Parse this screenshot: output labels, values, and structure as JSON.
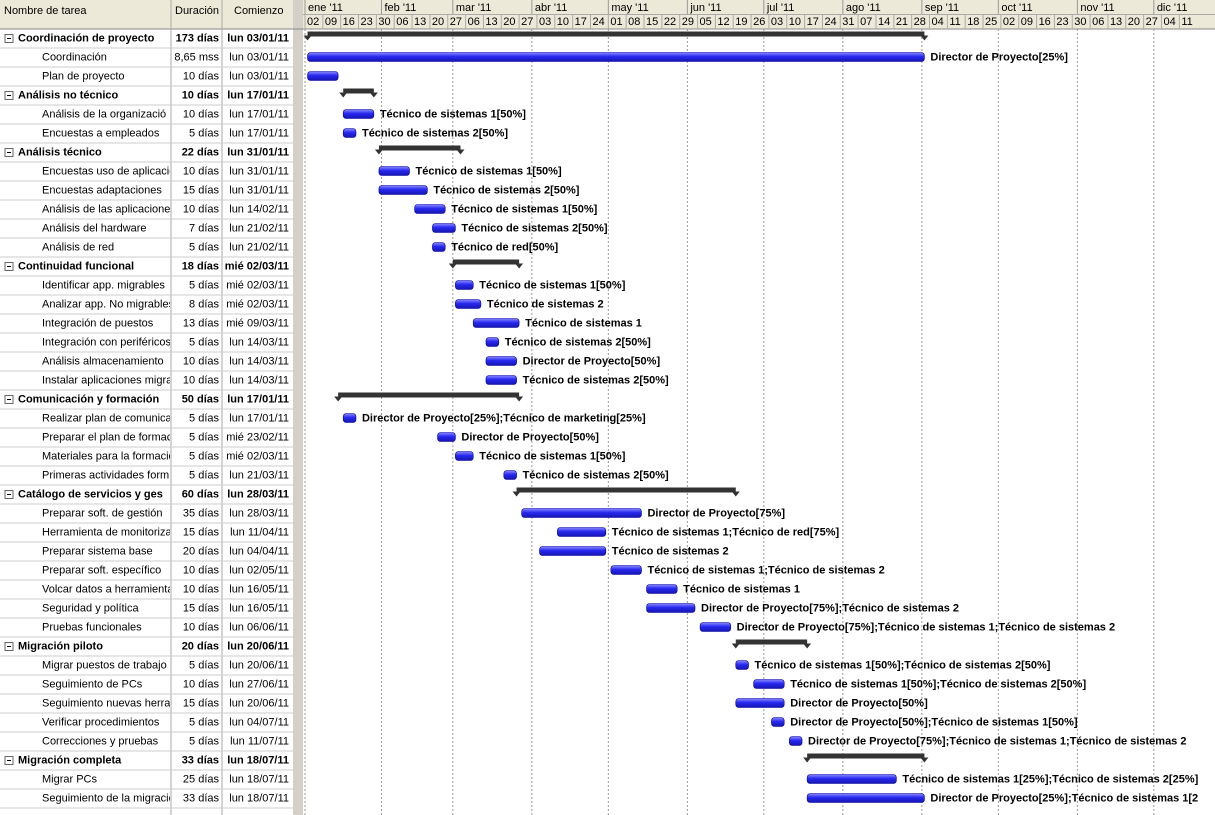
{
  "columns": [
    "Nombre de tarea",
    "Duración",
    "Comienzo"
  ],
  "timeline": {
    "xlim": [
      0,
      357
    ],
    "months": [
      {
        "value": 0,
        "label": "ene '11"
      },
      {
        "value": 30,
        "label": "feb '11"
      },
      {
        "value": 58,
        "label": "mar '11"
      },
      {
        "value": 89,
        "label": "abr '11"
      },
      {
        "value": 119,
        "label": "may '11"
      },
      {
        "value": 150,
        "label": "jun '11"
      },
      {
        "value": 180,
        "label": "jul '11"
      },
      {
        "value": 211,
        "label": "ago '11"
      },
      {
        "value": 242,
        "label": "sep '11"
      },
      {
        "value": 272,
        "label": "oct '11"
      },
      {
        "value": 303,
        "label": "nov '11"
      },
      {
        "value": 333,
        "label": "dic '11"
      }
    ],
    "weeks": [
      {
        "value": 0,
        "label": "02"
      },
      {
        "value": 7,
        "label": "09"
      },
      {
        "value": 14,
        "label": "16"
      },
      {
        "value": 21,
        "label": "23"
      },
      {
        "value": 28,
        "label": "30"
      },
      {
        "value": 35,
        "label": "06"
      },
      {
        "value": 42,
        "label": "13"
      },
      {
        "value": 49,
        "label": "20"
      },
      {
        "value": 56,
        "label": "27"
      },
      {
        "value": 63,
        "label": "06"
      },
      {
        "value": 70,
        "label": "13"
      },
      {
        "value": 77,
        "label": "20"
      },
      {
        "value": 84,
        "label": "27"
      },
      {
        "value": 91,
        "label": "03"
      },
      {
        "value": 98,
        "label": "10"
      },
      {
        "value": 105,
        "label": "17"
      },
      {
        "value": 112,
        "label": "24"
      },
      {
        "value": 119,
        "label": "01"
      },
      {
        "value": 126,
        "label": "08"
      },
      {
        "value": 133,
        "label": "15"
      },
      {
        "value": 140,
        "label": "22"
      },
      {
        "value": 147,
        "label": "29"
      },
      {
        "value": 154,
        "label": "05"
      },
      {
        "value": 161,
        "label": "12"
      },
      {
        "value": 168,
        "label": "19"
      },
      {
        "value": 175,
        "label": "26"
      },
      {
        "value": 182,
        "label": "03"
      },
      {
        "value": 189,
        "label": "10"
      },
      {
        "value": 196,
        "label": "17"
      },
      {
        "value": 203,
        "label": "24"
      },
      {
        "value": 210,
        "label": "31"
      },
      {
        "value": 217,
        "label": "07"
      },
      {
        "value": 224,
        "label": "14"
      },
      {
        "value": 231,
        "label": "21"
      },
      {
        "value": 238,
        "label": "28"
      },
      {
        "value": 245,
        "label": "04"
      },
      {
        "value": 252,
        "label": "11"
      },
      {
        "value": 259,
        "label": "18"
      },
      {
        "value": 266,
        "label": "25"
      },
      {
        "value": 273,
        "label": "02"
      },
      {
        "value": 280,
        "label": "09"
      },
      {
        "value": 287,
        "label": "16"
      },
      {
        "value": 294,
        "label": "23"
      },
      {
        "value": 301,
        "label": "30"
      },
      {
        "value": 308,
        "label": "06"
      },
      {
        "value": 315,
        "label": "13"
      },
      {
        "value": 322,
        "label": "20"
      },
      {
        "value": 329,
        "label": "27"
      },
      {
        "value": 336,
        "label": "04"
      },
      {
        "value": 343,
        "label": "11"
      }
    ]
  },
  "tasks": [
    {
      "name": "Coordinación de proyecto",
      "duration": "173 días",
      "start": "lun 03/01/11",
      "summary": true,
      "bar": [
        1,
        243
      ]
    },
    {
      "name": "Coordinación",
      "duration": "8,65 mss",
      "start": "lun 03/01/11",
      "summary": false,
      "bar": [
        1,
        243
      ],
      "resources": "Director de Proyecto[25%]"
    },
    {
      "name": "Plan de proyecto",
      "duration": "10 días",
      "start": "lun 03/01/11",
      "summary": false,
      "bar": [
        1,
        13
      ]
    },
    {
      "name": "Análisis no técnico",
      "duration": "10 días",
      "start": "lun 17/01/11",
      "summary": true,
      "bar": [
        15,
        27
      ]
    },
    {
      "name": "Análisis de la organizació",
      "duration": "10 días",
      "start": "lun 17/01/11",
      "summary": false,
      "bar": [
        15,
        27
      ],
      "resources": "Técnico de sistemas 1[50%]"
    },
    {
      "name": "Encuestas a empleados",
      "duration": "5 días",
      "start": "lun 17/01/11",
      "summary": false,
      "bar": [
        15,
        20
      ],
      "resources": "Técnico de sistemas 2[50%]"
    },
    {
      "name": "Análisis técnico",
      "duration": "22 días",
      "start": "lun 31/01/11",
      "summary": true,
      "bar": [
        29,
        61
      ]
    },
    {
      "name": "Encuestas uso de aplicacio",
      "duration": "10 días",
      "start": "lun 31/01/11",
      "summary": false,
      "bar": [
        29,
        41
      ],
      "resources": "Técnico de sistemas 1[50%]"
    },
    {
      "name": "Encuestas adaptaciones",
      "duration": "15 días",
      "start": "lun 31/01/11",
      "summary": false,
      "bar": [
        29,
        48
      ],
      "resources": "Técnico de sistemas 2[50%]"
    },
    {
      "name": "Análisis de las aplicacione",
      "duration": "10 días",
      "start": "lun 14/02/11",
      "summary": false,
      "bar": [
        43,
        55
      ],
      "resources": "Técnico de sistemas 1[50%]"
    },
    {
      "name": "Análisis del hardware",
      "duration": "7 días",
      "start": "lun 21/02/11",
      "summary": false,
      "bar": [
        50,
        59
      ],
      "resources": "Técnico de sistemas 2[50%]"
    },
    {
      "name": "Análisis de red",
      "duration": "5 días",
      "start": "lun 21/02/11",
      "summary": false,
      "bar": [
        50,
        55
      ],
      "resources": "Técnico de red[50%]"
    },
    {
      "name": "Continuidad funcional",
      "duration": "18 días",
      "start": "mié 02/03/11",
      "summary": true,
      "bar": [
        58,
        84
      ]
    },
    {
      "name": "Identificar app. migrables",
      "duration": "5 días",
      "start": "mié 02/03/11",
      "summary": false,
      "bar": [
        59,
        66
      ],
      "resources": "Técnico de sistemas 1[50%]"
    },
    {
      "name": "Analizar app. No migrables",
      "duration": "8 días",
      "start": "mié 02/03/11",
      "summary": false,
      "bar": [
        59,
        69
      ],
      "resources": "Técnico de sistemas 2"
    },
    {
      "name": "Integración de puestos",
      "duration": "13 días",
      "start": "mié 09/03/11",
      "summary": false,
      "bar": [
        66,
        84
      ],
      "resources": "Técnico de sistemas 1"
    },
    {
      "name": "Integración con periféricos",
      "duration": "5 días",
      "start": "lun 14/03/11",
      "summary": false,
      "bar": [
        71,
        76
      ],
      "resources": "Técnico de sistemas 2[50%]"
    },
    {
      "name": "Análisis almacenamiento",
      "duration": "10 días",
      "start": "lun 14/03/11",
      "summary": false,
      "bar": [
        71,
        83
      ],
      "resources": "Director de Proyecto[50%]"
    },
    {
      "name": "Instalar aplicaciones migra",
      "duration": "10 días",
      "start": "lun 14/03/11",
      "summary": false,
      "bar": [
        71,
        83
      ],
      "resources": "Técnico de sistemas 2[50%]"
    },
    {
      "name": "Comunicación y formación",
      "duration": "50 días",
      "start": "lun 17/01/11",
      "summary": true,
      "bar": [
        13,
        84
      ]
    },
    {
      "name": "Realizar plan de comunicac",
      "duration": "5 días",
      "start": "lun 17/01/11",
      "summary": false,
      "bar": [
        15,
        20
      ],
      "resources": "Director de Proyecto[25%];Técnico de marketing[25%]"
    },
    {
      "name": "Preparar el plan de formac",
      "duration": "5 días",
      "start": "mié 23/02/11",
      "summary": false,
      "bar": [
        52,
        59
      ],
      "resources": "Director de Proyecto[50%]"
    },
    {
      "name": "Materiales para la formació",
      "duration": "5 días",
      "start": "mié 02/03/11",
      "summary": false,
      "bar": [
        59,
        66
      ],
      "resources": "Técnico de sistemas 1[50%]"
    },
    {
      "name": "Primeras actividades form",
      "duration": "5 días",
      "start": "lun 21/03/11",
      "summary": false,
      "bar": [
        78,
        83
      ],
      "resources": "Técnico de sistemas 2[50%]"
    },
    {
      "name": "Catálogo de servicios y ges",
      "duration": "60 días",
      "start": "lun 28/03/11",
      "summary": true,
      "bar": [
        83,
        169
      ]
    },
    {
      "name": "Preparar soft. de gestión",
      "duration": "35 días",
      "start": "lun 28/03/11",
      "summary": false,
      "bar": [
        85,
        132
      ],
      "resources": "Director de Proyecto[75%]"
    },
    {
      "name": "Herramienta de monitorizac",
      "duration": "15 días",
      "start": "lun 11/04/11",
      "summary": false,
      "bar": [
        99,
        118
      ],
      "resources": "Técnico de sistemas 1;Técnico de red[75%]"
    },
    {
      "name": "Preparar sistema base",
      "duration": "20 días",
      "start": "lun 04/04/11",
      "summary": false,
      "bar": [
        92,
        118
      ],
      "resources": "Técnico de sistemas 2"
    },
    {
      "name": "Preparar soft. específico",
      "duration": "10 días",
      "start": "lun 02/05/11",
      "summary": false,
      "bar": [
        120,
        132
      ],
      "resources": "Técnico de sistemas 1;Técnico de sistemas 2"
    },
    {
      "name": "Volcar datos a herramienta",
      "duration": "10 días",
      "start": "lun 16/05/11",
      "summary": false,
      "bar": [
        134,
        146
      ],
      "resources": "Técnico de sistemas 1"
    },
    {
      "name": "Seguridad y política",
      "duration": "15 días",
      "start": "lun 16/05/11",
      "summary": false,
      "bar": [
        134,
        153
      ],
      "resources": "Director de Proyecto[75%];Técnico de sistemas 2"
    },
    {
      "name": "Pruebas funcionales",
      "duration": "10 días",
      "start": "lun 06/06/11",
      "summary": false,
      "bar": [
        155,
        167
      ],
      "resources": "Director de Proyecto[75%];Técnico de sistemas 1;Técnico de sistemas 2"
    },
    {
      "name": "Migración piloto",
      "duration": "20 días",
      "start": "lun 20/06/11",
      "summary": true,
      "bar": [
        169,
        197
      ]
    },
    {
      "name": "Migrar puestos de trabajo",
      "duration": "5 días",
      "start": "lun 20/06/11",
      "summary": false,
      "bar": [
        169,
        174
      ],
      "resources": "Técnico de sistemas 1[50%];Técnico de sistemas 2[50%]"
    },
    {
      "name": "Seguimiento de PCs",
      "duration": "10 días",
      "start": "lun 27/06/11",
      "summary": false,
      "bar": [
        176,
        188
      ],
      "resources": "Técnico de sistemas 1[50%];Técnico de sistemas 2[50%]"
    },
    {
      "name": "Seguimiento nuevas herrar",
      "duration": "15 días",
      "start": "lun 20/06/11",
      "summary": false,
      "bar": [
        169,
        188
      ],
      "resources": "Director de Proyecto[50%]"
    },
    {
      "name": "Verificar procedimientos",
      "duration": "5 días",
      "start": "lun 04/07/11",
      "summary": false,
      "bar": [
        183,
        188
      ],
      "resources": "Director de Proyecto[50%];Técnico de sistemas 1[50%]"
    },
    {
      "name": "Correcciones y pruebas",
      "duration": "5 días",
      "start": "lun 11/07/11",
      "summary": false,
      "bar": [
        190,
        195
      ],
      "resources": "Director de Proyecto[75%];Técnico de sistemas 1;Técnico de sistemas 2"
    },
    {
      "name": "Migración completa",
      "duration": "33 días",
      "start": "lun 18/07/11",
      "summary": true,
      "bar": [
        197,
        243
      ]
    },
    {
      "name": "Migrar PCs",
      "duration": "25 días",
      "start": "lun 18/07/11",
      "summary": false,
      "bar": [
        197,
        232
      ],
      "resources": "Técnico de sistemas 1[25%];Técnico de sistemas 2[25%]"
    },
    {
      "name": "Seguimiento de la migració",
      "duration": "33 días",
      "start": "lun 18/07/11",
      "summary": false,
      "bar": [
        197,
        243
      ],
      "resources": "Director de Proyecto[25%];Técnico de sistemas 1[2"
    }
  ]
}
